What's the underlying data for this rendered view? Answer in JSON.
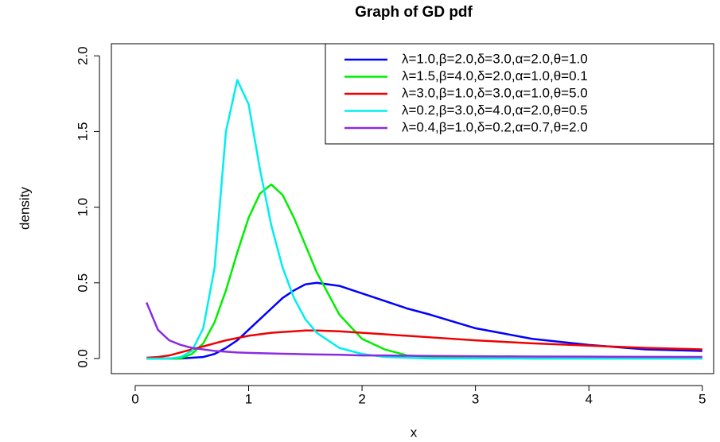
{
  "chart_data": {
    "type": "line",
    "title": "Graph of GD pdf",
    "x_label": "x",
    "y_label": "density",
    "x": [
      0.1,
      0.2,
      0.3,
      0.4,
      0.5,
      0.6,
      0.7,
      0.8,
      0.9,
      1.0,
      1.1,
      1.2,
      1.3,
      1.4,
      1.5,
      1.6,
      1.8,
      2.0,
      2.2,
      2.4,
      2.6,
      3.0,
      3.5,
      4.0,
      4.5,
      5.0
    ],
    "series": [
      {
        "name": "λ=1.0,β=2.0,δ=3.0,α=2.0,θ=1.0",
        "color": "#0000ff",
        "values": [
          0,
          0,
          0,
          0,
          0.005,
          0.01,
          0.03,
          0.07,
          0.12,
          0.19,
          0.26,
          0.33,
          0.4,
          0.45,
          0.49,
          0.5,
          0.48,
          0.43,
          0.38,
          0.33,
          0.29,
          0.2,
          0.13,
          0.09,
          0.06,
          0.05
        ]
      },
      {
        "name": "λ=1.5,β=4.0,δ=2.0,α=1.0,θ=0.1",
        "color": "#00ee00",
        "values": [
          0,
          0,
          0,
          0,
          0.03,
          0.1,
          0.24,
          0.45,
          0.7,
          0.93,
          1.09,
          1.15,
          1.08,
          0.93,
          0.75,
          0.57,
          0.29,
          0.13,
          0.06,
          0.02,
          0.01,
          0.005,
          0,
          0,
          0,
          0
        ]
      },
      {
        "name": "λ=3.0,β=1.0,δ=3.0,α=1.0,θ=5.0",
        "color": "#ee0000",
        "values": [
          0.005,
          0.01,
          0.02,
          0.04,
          0.06,
          0.08,
          0.1,
          0.12,
          0.135,
          0.15,
          0.16,
          0.17,
          0.175,
          0.18,
          0.185,
          0.185,
          0.18,
          0.17,
          0.16,
          0.15,
          0.14,
          0.12,
          0.1,
          0.085,
          0.07,
          0.06
        ]
      },
      {
        "name": "λ=0.2,β=3.0,δ=4.0,α=2.0,θ=0.5",
        "color": "#00eeee",
        "values": [
          0,
          0,
          0,
          0.01,
          0.05,
          0.2,
          0.6,
          1.5,
          1.84,
          1.68,
          1.25,
          0.88,
          0.6,
          0.4,
          0.26,
          0.17,
          0.07,
          0.03,
          0.01,
          0.005,
          0,
          0,
          0,
          0,
          0,
          0
        ]
      },
      {
        "name": "λ=0.4,β=1.0,δ=0.2,α=0.7,θ=2.0",
        "color": "#8a2be2",
        "values": [
          0.37,
          0.19,
          0.12,
          0.09,
          0.07,
          0.06,
          0.05,
          0.045,
          0.04,
          0.037,
          0.035,
          0.033,
          0.031,
          0.03,
          0.028,
          0.027,
          0.025,
          0.02,
          0.02,
          0.018,
          0.017,
          0.015,
          0.013,
          0.012,
          0.011,
          0.01
        ]
      }
    ],
    "xlim": [
      -0.21,
      5.1
    ],
    "ylim": [
      -0.1,
      2.08
    ],
    "xticks": [
      0,
      1,
      2,
      3,
      4,
      5
    ],
    "yticks": [
      {
        "value": 0,
        "label": "0.0"
      },
      0.5,
      {
        "value": 1,
        "label": "1.0"
      },
      1.5,
      {
        "value": 2,
        "label": "2.0"
      }
    ],
    "legend": "topright"
  }
}
